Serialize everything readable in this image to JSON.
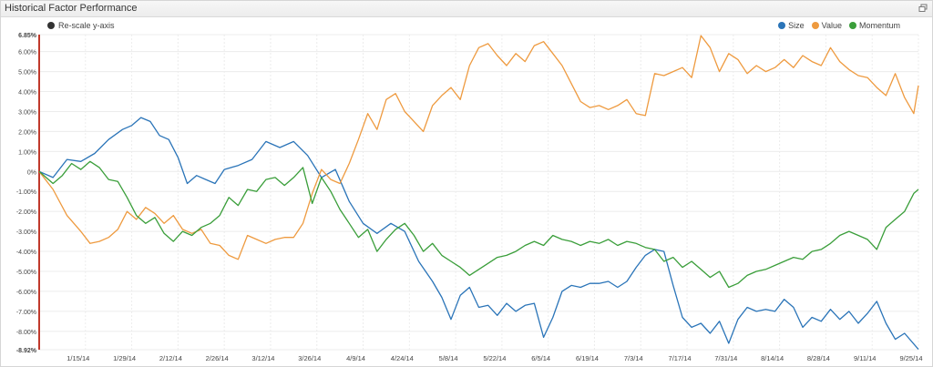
{
  "panel": {
    "title": "Historical Factor Performance",
    "restore_icon": "restore-window-icon"
  },
  "rescale": {
    "label": "Re-scale y-axis",
    "icon": "toggle-dot-icon"
  },
  "colors": {
    "size": "#2a74b8",
    "value": "#ee9a3f",
    "momentum": "#3a9e3a",
    "axis_accent": "#c0392b",
    "grid": "#ececec"
  },
  "chart_data": {
    "type": "line",
    "ylim": [
      -8.92,
      6.85
    ],
    "ytick_values": [
      6.85,
      6.0,
      5.0,
      4.0,
      3.0,
      2.0,
      1.0,
      0,
      -1.0,
      -2.0,
      -3.0,
      -4.0,
      -5.0,
      -6.0,
      -7.0,
      -8.0,
      -8.92
    ],
    "ytick_labels": [
      "6.85%",
      "6.00%",
      "5.00%",
      "4.00%",
      "3.00%",
      "2.00%",
      "1.00%",
      "0%",
      "-1.00%",
      "-2.00%",
      "-3.00%",
      "-4.00%",
      "-5.00%",
      "-6.00%",
      "-7.00%",
      "-8.00%",
      "-8.92%"
    ],
    "xtick_labels": [
      "1/15/14",
      "1/29/14",
      "2/12/14",
      "2/26/14",
      "3/12/14",
      "3/26/14",
      "4/9/14",
      "4/24/14",
      "5/8/14",
      "5/22/14",
      "6/5/14",
      "6/19/14",
      "7/3/14",
      "7/17/14",
      "7/31/14",
      "8/14/14",
      "8/28/14",
      "9/11/14",
      "9/25/14"
    ],
    "x_count": 190,
    "xtick_index": [
      10,
      20,
      30,
      40,
      50,
      60,
      70,
      80,
      90,
      100,
      110,
      120,
      130,
      140,
      150,
      160,
      170,
      180,
      190
    ],
    "series": [
      {
        "name": "Size",
        "points": [
          [
            0,
            0
          ],
          [
            3,
            -0.3
          ],
          [
            6,
            0.6
          ],
          [
            9,
            0.5
          ],
          [
            12,
            0.9
          ],
          [
            15,
            1.6
          ],
          [
            18,
            2.1
          ],
          [
            20,
            2.3
          ],
          [
            22,
            2.7
          ],
          [
            24,
            2.5
          ],
          [
            26,
            1.8
          ],
          [
            28,
            1.6
          ],
          [
            30,
            0.7
          ],
          [
            32,
            -0.6
          ],
          [
            34,
            -0.2
          ],
          [
            36,
            -0.4
          ],
          [
            38,
            -0.6
          ],
          [
            40,
            0.1
          ],
          [
            43,
            0.3
          ],
          [
            46,
            0.6
          ],
          [
            49,
            1.5
          ],
          [
            52,
            1.2
          ],
          [
            55,
            1.5
          ],
          [
            58,
            0.8
          ],
          [
            61,
            -0.3
          ],
          [
            64,
            0.1
          ],
          [
            67,
            -1.5
          ],
          [
            70,
            -2.6
          ],
          [
            73,
            -3.1
          ],
          [
            76,
            -2.6
          ],
          [
            79,
            -3.0
          ],
          [
            82,
            -4.5
          ],
          [
            85,
            -5.5
          ],
          [
            87,
            -6.3
          ],
          [
            89,
            -7.4
          ],
          [
            91,
            -6.2
          ],
          [
            93,
            -5.8
          ],
          [
            95,
            -6.8
          ],
          [
            97,
            -6.7
          ],
          [
            99,
            -7.2
          ],
          [
            101,
            -6.6
          ],
          [
            103,
            -7.0
          ],
          [
            105,
            -6.7
          ],
          [
            107,
            -6.6
          ],
          [
            109,
            -8.3
          ],
          [
            111,
            -7.3
          ],
          [
            113,
            -6.0
          ],
          [
            115,
            -5.7
          ],
          [
            117,
            -5.8
          ],
          [
            119,
            -5.6
          ],
          [
            121,
            -5.6
          ],
          [
            123,
            -5.5
          ],
          [
            125,
            -5.8
          ],
          [
            127,
            -5.5
          ],
          [
            129,
            -4.8
          ],
          [
            131,
            -4.2
          ],
          [
            133,
            -3.9
          ],
          [
            135,
            -4.0
          ],
          [
            137,
            -5.7
          ],
          [
            139,
            -7.3
          ],
          [
            141,
            -7.8
          ],
          [
            143,
            -7.6
          ],
          [
            145,
            -8.1
          ],
          [
            147,
            -7.5
          ],
          [
            149,
            -8.6
          ],
          [
            151,
            -7.4
          ],
          [
            153,
            -6.8
          ],
          [
            155,
            -7.0
          ],
          [
            157,
            -6.9
          ],
          [
            159,
            -7.0
          ],
          [
            161,
            -6.4
          ],
          [
            163,
            -6.8
          ],
          [
            165,
            -7.8
          ],
          [
            167,
            -7.3
          ],
          [
            169,
            -7.5
          ],
          [
            171,
            -6.9
          ],
          [
            173,
            -7.4
          ],
          [
            175,
            -7.0
          ],
          [
            177,
            -7.6
          ],
          [
            179,
            -7.1
          ],
          [
            181,
            -6.5
          ],
          [
            183,
            -7.6
          ],
          [
            185,
            -8.4
          ],
          [
            187,
            -8.1
          ],
          [
            190,
            -8.9
          ]
        ]
      },
      {
        "name": "Value",
        "points": [
          [
            0,
            0
          ],
          [
            3,
            -0.9
          ],
          [
            6,
            -2.2
          ],
          [
            9,
            -3.0
          ],
          [
            11,
            -3.6
          ],
          [
            13,
            -3.5
          ],
          [
            15,
            -3.3
          ],
          [
            17,
            -2.9
          ],
          [
            19,
            -2.0
          ],
          [
            21,
            -2.4
          ],
          [
            23,
            -1.8
          ],
          [
            25,
            -2.1
          ],
          [
            27,
            -2.6
          ],
          [
            29,
            -2.2
          ],
          [
            31,
            -2.9
          ],
          [
            33,
            -3.1
          ],
          [
            35,
            -2.9
          ],
          [
            37,
            -3.6
          ],
          [
            39,
            -3.7
          ],
          [
            41,
            -4.2
          ],
          [
            43,
            -4.4
          ],
          [
            45,
            -3.2
          ],
          [
            47,
            -3.4
          ],
          [
            49,
            -3.6
          ],
          [
            51,
            -3.4
          ],
          [
            53,
            -3.3
          ],
          [
            55,
            -3.3
          ],
          [
            57,
            -2.6
          ],
          [
            59,
            -1.1
          ],
          [
            61,
            0.1
          ],
          [
            63,
            -0.4
          ],
          [
            65,
            -0.6
          ],
          [
            67,
            0.4
          ],
          [
            69,
            1.6
          ],
          [
            71,
            2.9
          ],
          [
            73,
            2.1
          ],
          [
            75,
            3.6
          ],
          [
            77,
            3.9
          ],
          [
            79,
            3.0
          ],
          [
            81,
            2.5
          ],
          [
            83,
            2.0
          ],
          [
            85,
            3.3
          ],
          [
            87,
            3.8
          ],
          [
            89,
            4.2
          ],
          [
            91,
            3.6
          ],
          [
            93,
            5.3
          ],
          [
            95,
            6.2
          ],
          [
            97,
            6.4
          ],
          [
            99,
            5.8
          ],
          [
            101,
            5.3
          ],
          [
            103,
            5.9
          ],
          [
            105,
            5.5
          ],
          [
            107,
            6.3
          ],
          [
            109,
            6.5
          ],
          [
            111,
            5.9
          ],
          [
            113,
            5.3
          ],
          [
            115,
            4.4
          ],
          [
            117,
            3.5
          ],
          [
            119,
            3.2
          ],
          [
            121,
            3.3
          ],
          [
            123,
            3.1
          ],
          [
            125,
            3.3
          ],
          [
            127,
            3.6
          ],
          [
            129,
            2.9
          ],
          [
            131,
            2.8
          ],
          [
            133,
            4.9
          ],
          [
            135,
            4.8
          ],
          [
            137,
            5.0
          ],
          [
            139,
            5.2
          ],
          [
            141,
            4.7
          ],
          [
            143,
            6.8
          ],
          [
            145,
            6.2
          ],
          [
            147,
            5.0
          ],
          [
            149,
            5.9
          ],
          [
            151,
            5.6
          ],
          [
            153,
            4.9
          ],
          [
            155,
            5.3
          ],
          [
            157,
            5.0
          ],
          [
            159,
            5.2
          ],
          [
            161,
            5.6
          ],
          [
            163,
            5.2
          ],
          [
            165,
            5.8
          ],
          [
            167,
            5.5
          ],
          [
            169,
            5.3
          ],
          [
            171,
            6.2
          ],
          [
            173,
            5.5
          ],
          [
            175,
            5.1
          ],
          [
            177,
            4.8
          ],
          [
            179,
            4.7
          ],
          [
            181,
            4.2
          ],
          [
            183,
            3.8
          ],
          [
            185,
            4.9
          ],
          [
            187,
            3.7
          ],
          [
            189,
            2.9
          ],
          [
            190,
            4.3
          ]
        ]
      },
      {
        "name": "Momentum",
        "points": [
          [
            0,
            0
          ],
          [
            3,
            -0.6
          ],
          [
            5,
            -0.2
          ],
          [
            7,
            0.4
          ],
          [
            9,
            0.1
          ],
          [
            11,
            0.5
          ],
          [
            13,
            0.2
          ],
          [
            15,
            -0.4
          ],
          [
            17,
            -0.5
          ],
          [
            19,
            -1.3
          ],
          [
            21,
            -2.2
          ],
          [
            23,
            -2.6
          ],
          [
            25,
            -2.3
          ],
          [
            27,
            -3.1
          ],
          [
            29,
            -3.5
          ],
          [
            31,
            -3.0
          ],
          [
            33,
            -3.2
          ],
          [
            35,
            -2.8
          ],
          [
            37,
            -2.6
          ],
          [
            39,
            -2.2
          ],
          [
            41,
            -1.3
          ],
          [
            43,
            -1.7
          ],
          [
            45,
            -0.9
          ],
          [
            47,
            -1.0
          ],
          [
            49,
            -0.4
          ],
          [
            51,
            -0.3
          ],
          [
            53,
            -0.7
          ],
          [
            55,
            -0.3
          ],
          [
            57,
            0.2
          ],
          [
            59,
            -1.6
          ],
          [
            61,
            -0.3
          ],
          [
            63,
            -1.0
          ],
          [
            65,
            -1.9
          ],
          [
            67,
            -2.6
          ],
          [
            69,
            -3.3
          ],
          [
            71,
            -2.9
          ],
          [
            73,
            -4.0
          ],
          [
            75,
            -3.4
          ],
          [
            77,
            -2.9
          ],
          [
            79,
            -2.6
          ],
          [
            81,
            -3.2
          ],
          [
            83,
            -4.0
          ],
          [
            85,
            -3.6
          ],
          [
            87,
            -4.2
          ],
          [
            89,
            -4.5
          ],
          [
            91,
            -4.8
          ],
          [
            93,
            -5.2
          ],
          [
            95,
            -4.9
          ],
          [
            97,
            -4.6
          ],
          [
            99,
            -4.3
          ],
          [
            101,
            -4.2
          ],
          [
            103,
            -4.0
          ],
          [
            105,
            -3.7
          ],
          [
            107,
            -3.5
          ],
          [
            109,
            -3.7
          ],
          [
            111,
            -3.2
          ],
          [
            113,
            -3.4
          ],
          [
            115,
            -3.5
          ],
          [
            117,
            -3.7
          ],
          [
            119,
            -3.5
          ],
          [
            121,
            -3.6
          ],
          [
            123,
            -3.4
          ],
          [
            125,
            -3.7
          ],
          [
            127,
            -3.5
          ],
          [
            129,
            -3.6
          ],
          [
            131,
            -3.8
          ],
          [
            133,
            -3.9
          ],
          [
            135,
            -4.5
          ],
          [
            137,
            -4.3
          ],
          [
            139,
            -4.8
          ],
          [
            141,
            -4.5
          ],
          [
            143,
            -4.9
          ],
          [
            145,
            -5.3
          ],
          [
            147,
            -5.0
          ],
          [
            149,
            -5.8
          ],
          [
            151,
            -5.6
          ],
          [
            153,
            -5.2
          ],
          [
            155,
            -5.0
          ],
          [
            157,
            -4.9
          ],
          [
            159,
            -4.7
          ],
          [
            161,
            -4.5
          ],
          [
            163,
            -4.3
          ],
          [
            165,
            -4.4
          ],
          [
            167,
            -4.0
          ],
          [
            169,
            -3.9
          ],
          [
            171,
            -3.6
          ],
          [
            173,
            -3.2
          ],
          [
            175,
            -3.0
          ],
          [
            177,
            -3.2
          ],
          [
            179,
            -3.4
          ],
          [
            181,
            -3.9
          ],
          [
            183,
            -2.8
          ],
          [
            185,
            -2.4
          ],
          [
            187,
            -2.0
          ],
          [
            189,
            -1.1
          ],
          [
            190,
            -0.9
          ]
        ]
      }
    ]
  }
}
